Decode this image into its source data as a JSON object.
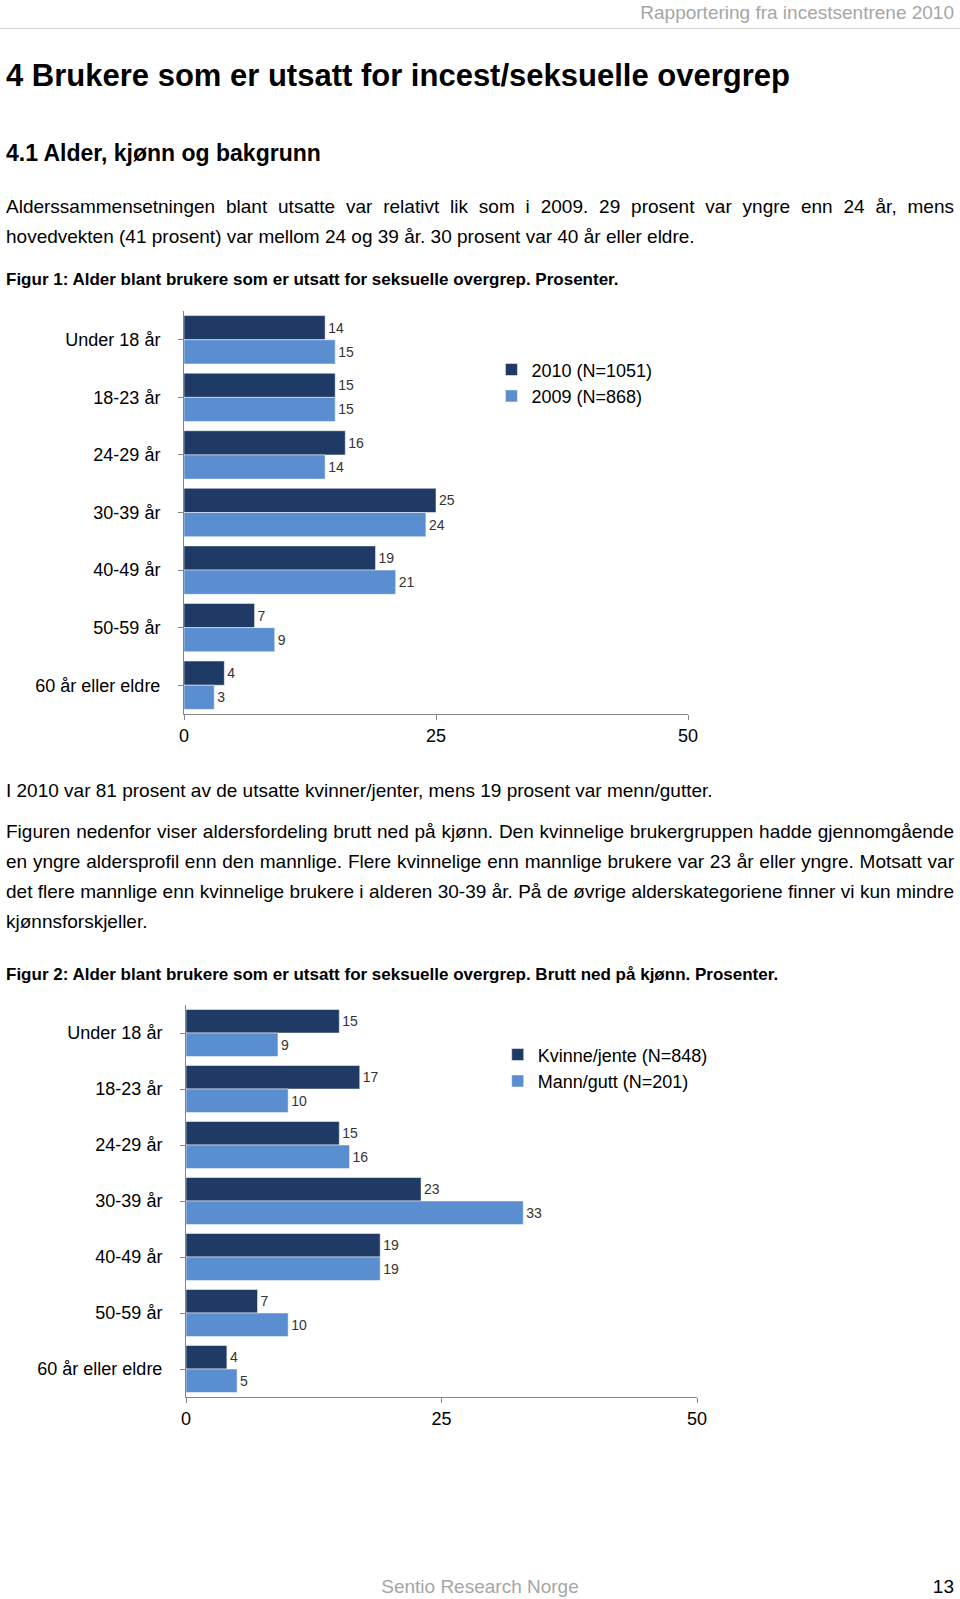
{
  "header": "Rapportering fra incestsentrene 2010",
  "heading": "4 Brukere som er utsatt for incest/seksuelle overgrep",
  "subheading": "4.1 Alder, kjønn og bakgrunn",
  "paragraphs": [
    "Alderssammensetningen blant utsatte var relativt lik som i 2009. 29 prosent var yngre enn 24 år, mens hovedvekten (41 prosent) var mellom 24 og 39 år. 30 prosent var 40 år eller eldre.",
    "I 2010 var 81 prosent av de utsatte kvinner/jenter, mens 19 prosent var menn/gutter.",
    "Figuren nedenfor viser aldersfordeling brutt ned på kjønn. Den kvinnelige brukergruppen hadde gjennomgående en yngre aldersprofil enn den mannlige. Flere kvinnelige enn mannlige brukere var 23 år eller yngre. Motsatt var det flere mannlige enn kvinnelige brukere i alderen 30-39 år. På de øvrige alderskategoriene finner vi kun mindre kjønnsforskjeller."
  ],
  "footer": {
    "text": "Sentio Research Norge",
    "page": 13
  },
  "chart_data": [
    {
      "type": "bar",
      "title": "Figur 1: Alder blant brukere som er utsatt for seksuelle overgrep. Prosenter.",
      "orientation": "horizontal",
      "categories": [
        "Under 18 år",
        "18-23 år",
        "24-29 år",
        "30-39 år",
        "40-49 år",
        "50-59 år",
        "60 år eller eldre"
      ],
      "series": [
        {
          "name": "2010 (N=1051)",
          "color": "#1f3a64",
          "values": [
            14,
            15,
            16,
            25,
            19,
            7,
            4
          ]
        },
        {
          "name": "2009 (N=868)",
          "color": "#5a8ed0",
          "values": [
            15,
            15,
            14,
            24,
            21,
            9,
            3
          ]
        }
      ],
      "xlim": [
        0,
        50
      ],
      "xticks": [
        0,
        25,
        50
      ],
      "grid": false,
      "data_labels": true,
      "legend": "upper right"
    },
    {
      "type": "bar",
      "title": "Figur 2: Alder blant brukere som er utsatt for seksuelle overgrep. Brutt ned på kjønn. Prosenter.",
      "orientation": "horizontal",
      "categories": [
        "Under 18 år",
        "18-23 år",
        "24-29 år",
        "30-39 år",
        "40-49 år",
        "50-59 år",
        "60 år eller eldre"
      ],
      "series": [
        {
          "name": "Kvinne/jente (N=848)",
          "color": "#1f3a64",
          "values": [
            15,
            17,
            15,
            23,
            19,
            7,
            4
          ]
        },
        {
          "name": "Mann/gutt (N=201)",
          "color": "#5a8ed0",
          "values": [
            9,
            10,
            16,
            33,
            19,
            10,
            5
          ]
        }
      ],
      "xlim": [
        0,
        50
      ],
      "xticks": [
        0,
        25,
        50
      ],
      "grid": false,
      "data_labels": true,
      "legend": "upper right"
    }
  ]
}
